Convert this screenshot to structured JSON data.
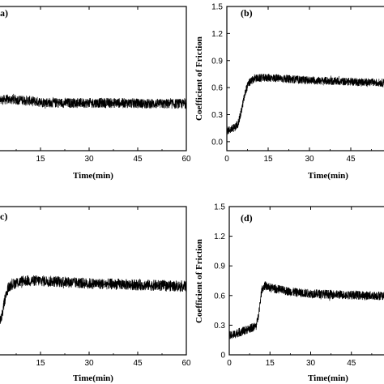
{
  "chart_data": [
    {
      "type": "line",
      "panel_label": "(a)",
      "xlabel": "Time(min)",
      "ylabel": "",
      "xlim": [
        0,
        60
      ],
      "ylim": [
        -0.1,
        1.5
      ],
      "xticks": [
        "15",
        "30",
        "45",
        "60"
      ],
      "yticks": [],
      "series": [
        {
          "x": [
            0,
            5,
            10,
            15,
            20,
            30,
            40,
            50,
            60
          ],
          "y": [
            0.45,
            0.47,
            0.46,
            0.44,
            0.43,
            0.43,
            0.43,
            0.42,
            0.42
          ],
          "noise": 0.055
        }
      ]
    },
    {
      "type": "line",
      "panel_label": "(b)",
      "xlabel": "Time(min)",
      "ylabel": "Coefficient of Friction",
      "xlim": [
        0,
        60
      ],
      "ylim": [
        -0.1,
        1.5
      ],
      "xticks": [
        "0",
        "15",
        "30",
        "45"
      ],
      "yticks": [
        "0.0",
        "0.3",
        "0.6",
        "0.9",
        "1.2",
        "1.5"
      ],
      "series": [
        {
          "x": [
            0,
            1,
            3,
            4,
            5,
            6,
            7,
            8,
            10,
            15,
            20,
            25,
            30,
            40,
            50,
            60
          ],
          "y": [
            0.12,
            0.13,
            0.16,
            0.2,
            0.3,
            0.45,
            0.58,
            0.65,
            0.7,
            0.71,
            0.7,
            0.69,
            0.68,
            0.67,
            0.66,
            0.65
          ],
          "noise": 0.045
        }
      ]
    },
    {
      "type": "line",
      "panel_label": "(c)",
      "xlabel": "Time(min)",
      "ylabel": "",
      "xlim": [
        0,
        60
      ],
      "ylim": [
        -0.1,
        1.5
      ],
      "xticks": [
        "15",
        "30",
        "45",
        "60"
      ],
      "yticks": [],
      "series": [
        {
          "x": [
            0,
            2,
            3,
            4,
            5,
            6,
            8,
            10,
            15,
            20,
            25,
            30,
            40,
            50,
            60
          ],
          "y": [
            0.26,
            0.26,
            0.3,
            0.5,
            0.62,
            0.66,
            0.68,
            0.7,
            0.7,
            0.69,
            0.68,
            0.67,
            0.66,
            0.65,
            0.64
          ],
          "noise": 0.06
        }
      ]
    },
    {
      "type": "line",
      "panel_label": "(d)",
      "xlabel": "Time(min)",
      "ylabel": "Coefficient of Friction",
      "xlim": [
        0,
        60
      ],
      "ylim": [
        0,
        1.5
      ],
      "xticks": [
        "0",
        "15",
        "30",
        "45"
      ],
      "yticks": [
        "0",
        "0.3",
        "0.6",
        "0.9",
        "1.2",
        "1.5"
      ],
      "series": [
        {
          "x": [
            0,
            5,
            10,
            11,
            12,
            13,
            15,
            20,
            25,
            30,
            40,
            50,
            60
          ],
          "y": [
            0.19,
            0.24,
            0.29,
            0.45,
            0.66,
            0.7,
            0.68,
            0.65,
            0.63,
            0.62,
            0.61,
            0.6,
            0.6
          ],
          "noise": 0.045
        }
      ]
    }
  ]
}
